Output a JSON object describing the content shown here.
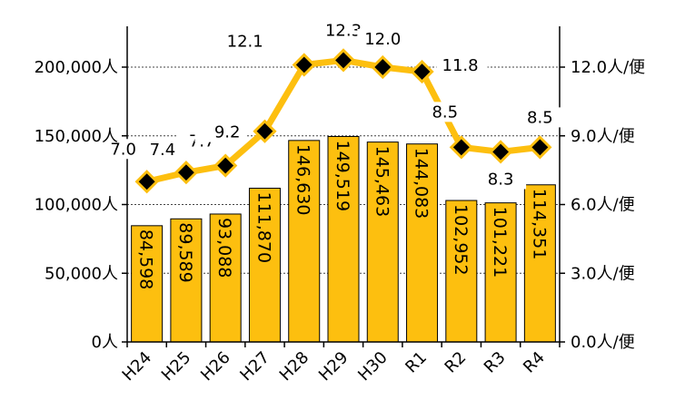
{
  "chart_data": {
    "type": "bar+line",
    "categories": [
      "H24",
      "H25",
      "H26",
      "H27",
      "H28",
      "H29",
      "H30",
      "R1",
      "R2",
      "R3",
      "R4"
    ],
    "series": [
      {
        "type": "bar",
        "axis": "left",
        "values": [
          84598,
          89589,
          93088,
          111870,
          146630,
          149519,
          145463,
          144083,
          102952,
          101221,
          114351
        ],
        "labels": [
          "84,598",
          "89,589",
          "93,088",
          "111,870",
          "146,630",
          "149,519",
          "145,463",
          "144,083",
          "102,952",
          "101,221",
          "114,351"
        ]
      },
      {
        "type": "line",
        "axis": "right",
        "values": [
          7.0,
          7.4,
          7.7,
          9.2,
          12.1,
          12.3,
          12.0,
          11.8,
          8.5,
          8.3,
          8.5
        ],
        "labels": [
          "7.0",
          "7.4",
          "7.7",
          "9.2",
          "12.1",
          "12.3",
          "12.0",
          "11.8",
          "8.5",
          "8.3",
          "8.5"
        ]
      }
    ],
    "left_axis": {
      "min": 0,
      "max": 200000,
      "ticks": [
        {
          "value": 0,
          "label": "0人"
        },
        {
          "value": 50000,
          "label": "50,000人"
        },
        {
          "value": 100000,
          "label": "100,000人"
        },
        {
          "value": 150000,
          "label": "150,000人"
        },
        {
          "value": 200000,
          "label": "200,000人"
        }
      ]
    },
    "right_axis": {
      "min": 0,
      "max": 12,
      "ticks": [
        {
          "value": 0,
          "label": "0.0人/便"
        },
        {
          "value": 3,
          "label": "3.0人/便"
        },
        {
          "value": 6,
          "label": "6.0人/便"
        },
        {
          "value": 9,
          "label": "9.0人/便"
        },
        {
          "value": 12,
          "label": "12.0人/便"
        }
      ]
    },
    "gridlines": [
      50000,
      100000,
      150000,
      200000
    ],
    "colors": {
      "bar_fill": "#FDBF0F",
      "bar_stroke": "#000000",
      "line": "#FDBF0F",
      "marker": "#000000",
      "grid": "#444444"
    }
  }
}
